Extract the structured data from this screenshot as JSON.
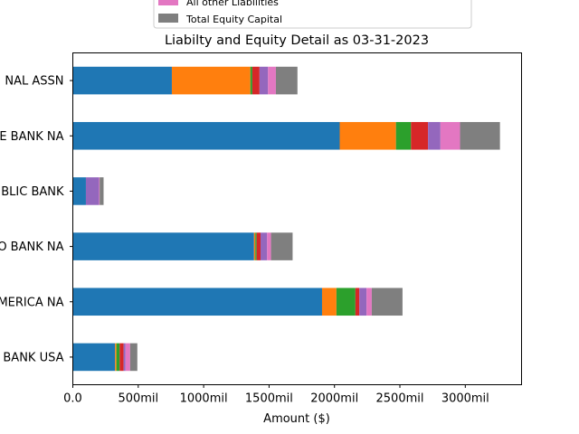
{
  "chart_data": {
    "type": "bar",
    "orientation": "horizontal",
    "stacked": true,
    "title": "Liabilty and Equity Detail as 03-31-2023",
    "xlabel": "Amount ($)",
    "ylabel": "",
    "xlim": [
      0,
      3430
    ],
    "x_ticks": [
      {
        "value": 0,
        "label": "0.0"
      },
      {
        "value": 500,
        "label": "500mil"
      },
      {
        "value": 1000,
        "label": "1000mil"
      },
      {
        "value": 1500,
        "label": "1500mil"
      },
      {
        "value": 2000,
        "label": "2000mil"
      },
      {
        "value": 2500,
        "label": "2500mil"
      },
      {
        "value": 3000,
        "label": "3000mil"
      }
    ],
    "categories": [
      "NAL ASSN",
      "E BANK NA",
      "BLIC BANK",
      "O BANK NA",
      "MERICA NA",
      "BANK USA"
    ],
    "legend_position": "top-center (partially cut off)",
    "grid": false,
    "series": [
      {
        "color": "#1f77b4",
        "values": [
          757,
          2040,
          100,
          1385,
          1905,
          323
        ]
      },
      {
        "color": "#ff7f0e",
        "values": [
          600,
          430,
          0,
          10,
          110,
          10
        ]
      },
      {
        "color": "#2ca02c",
        "values": [
          15,
          115,
          0,
          10,
          145,
          25
        ]
      },
      {
        "color": "#d62728",
        "values": [
          55,
          130,
          0,
          30,
          30,
          30
        ]
      },
      {
        "color": "#9467bd",
        "values": [
          65,
          95,
          100,
          50,
          55,
          15
        ]
      },
      {
        "color": "#e377c2",
        "name": "All other Liabilities",
        "values": [
          60,
          150,
          5,
          30,
          40,
          35
        ]
      },
      {
        "color": "#7f7f7f",
        "name": "Total Equity Capital",
        "values": [
          165,
          305,
          30,
          165,
          235,
          55
        ]
      }
    ]
  }
}
